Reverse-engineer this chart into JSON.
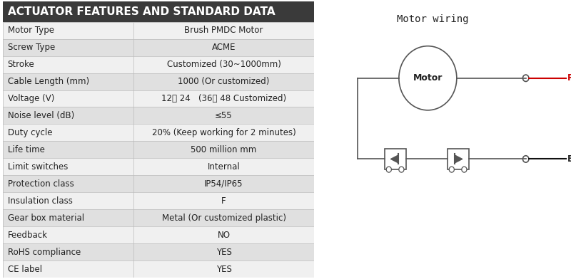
{
  "title": "ACTUATOR FEATURES AND STANDARD DATA",
  "title_bg": "#3a3a3a",
  "title_color": "#ffffff",
  "rows": [
    [
      "Motor Type",
      "Brush PMDC Motor"
    ],
    [
      "Screw Type",
      "ACME"
    ],
    [
      "Stroke",
      "Customized (30~1000mm)"
    ],
    [
      "Cable Length (mm)",
      "1000 (Or customized)"
    ],
    [
      "Voltage (V)",
      "12、 24   (36、 48 Customized)"
    ],
    [
      "Noise level (dB)",
      "≤55"
    ],
    [
      "Duty cycle",
      "20% (Keep working for 2 minutes)"
    ],
    [
      "Life time",
      "500 million mm"
    ],
    [
      "Limit switches",
      "Internal"
    ],
    [
      "Protection class",
      "IP54/IP65"
    ],
    [
      "Insulation class",
      "F"
    ],
    [
      "Gear box material",
      "Metal (Or customized plastic)"
    ],
    [
      "Feedback",
      "NO"
    ],
    [
      "RoHS compliance",
      "YES"
    ],
    [
      "CE label",
      "YES"
    ]
  ],
  "row_colors_odd": "#f0f0f0",
  "row_colors_even": "#e0e0e0",
  "col_split": 0.42,
  "motor_wiring_title": "Motor wiring",
  "motor_label": "Motor",
  "red_label": "RED",
  "black_label": "BLACK",
  "wire_color_red": "#cc0000",
  "wire_color_black": "#111111",
  "font_size_title": 11,
  "font_size_row": 8.5,
  "font_size_diagram": 9
}
